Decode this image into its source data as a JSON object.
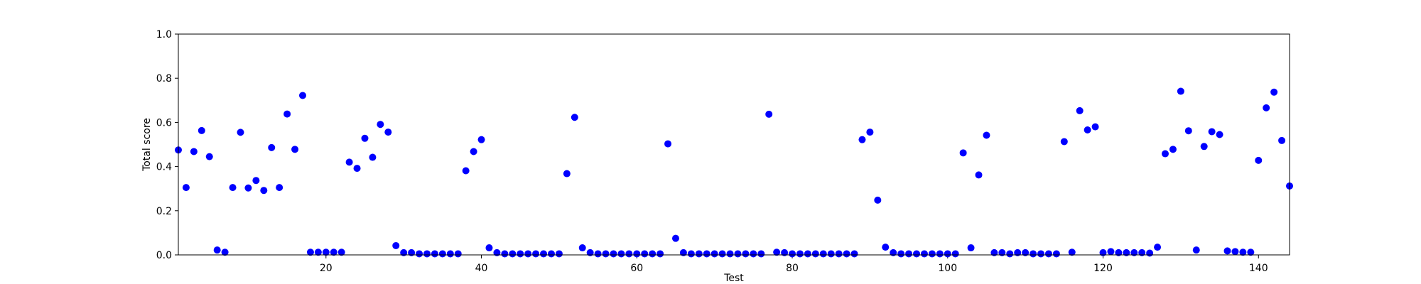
{
  "chart_data": {
    "type": "scatter",
    "xlabel": "Test",
    "ylabel": "Total score",
    "xlim": [
      1,
      144
    ],
    "ylim": [
      0,
      1.0
    ],
    "x_ticks": [
      20,
      40,
      60,
      80,
      100,
      120,
      140
    ],
    "x_tick_labels": [
      "20",
      "40",
      "60",
      "80",
      "100",
      "120",
      "140"
    ],
    "y_ticks": [
      0.0,
      0.2,
      0.4,
      0.6,
      0.8,
      1.0
    ],
    "y_tick_labels": [
      "0.0",
      "0.2",
      "0.4",
      "0.6",
      "0.8",
      "1.0"
    ],
    "grid": false,
    "marker_color": "#0000ff",
    "series": [
      {
        "x": [
          1,
          2,
          3,
          4,
          5,
          6,
          7,
          8,
          9,
          10,
          11,
          12,
          13,
          14,
          15,
          16,
          17,
          18,
          19,
          20,
          21,
          22,
          23,
          24,
          25,
          26,
          27,
          28,
          29,
          30,
          31,
          32,
          33,
          34,
          35,
          36,
          37,
          38,
          39,
          40,
          41,
          42,
          43,
          44,
          45,
          46,
          47,
          48,
          49,
          50,
          51,
          52,
          53,
          54,
          55,
          56,
          57,
          58,
          59,
          60,
          61,
          62,
          63,
          64,
          65,
          66,
          67,
          68,
          69,
          70,
          71,
          72,
          73,
          74,
          75,
          76,
          77,
          78,
          79,
          80,
          81,
          82,
          83,
          84,
          85,
          86,
          87,
          88,
          89,
          90,
          91,
          92,
          93,
          94,
          95,
          96,
          97,
          98,
          99,
          100,
          101,
          102,
          103,
          104,
          105,
          106,
          107,
          108,
          109,
          110,
          111,
          112,
          113,
          114,
          115,
          116,
          117,
          118,
          119,
          120,
          121,
          122,
          123,
          124,
          125,
          126,
          127,
          128,
          129,
          130,
          131,
          132,
          133,
          134,
          135,
          136,
          137,
          138,
          139,
          140,
          141,
          142,
          143,
          144
        ],
        "y": [
          0.475,
          0.305,
          0.468,
          0.563,
          0.445,
          0.022,
          0.012,
          0.305,
          0.555,
          0.303,
          0.337,
          0.292,
          0.486,
          0.305,
          0.638,
          0.478,
          0.722,
          0.012,
          0.012,
          0.012,
          0.012,
          0.012,
          0.42,
          0.392,
          0.528,
          0.442,
          0.591,
          0.556,
          0.042,
          0.01,
          0.01,
          0.005,
          0.005,
          0.005,
          0.005,
          0.005,
          0.005,
          0.381,
          0.468,
          0.522,
          0.032,
          0.01,
          0.005,
          0.005,
          0.005,
          0.005,
          0.005,
          0.005,
          0.005,
          0.005,
          0.368,
          0.623,
          0.032,
          0.01,
          0.005,
          0.005,
          0.005,
          0.005,
          0.005,
          0.005,
          0.005,
          0.005,
          0.005,
          0.503,
          0.075,
          0.01,
          0.005,
          0.005,
          0.005,
          0.005,
          0.005,
          0.005,
          0.005,
          0.005,
          0.005,
          0.005,
          0.637,
          0.012,
          0.01,
          0.005,
          0.005,
          0.005,
          0.005,
          0.005,
          0.005,
          0.005,
          0.005,
          0.005,
          0.522,
          0.556,
          0.248,
          0.035,
          0.01,
          0.005,
          0.005,
          0.005,
          0.005,
          0.005,
          0.005,
          0.005,
          0.005,
          0.462,
          0.032,
          0.362,
          0.542,
          0.01,
          0.01,
          0.005,
          0.01,
          0.01,
          0.005,
          0.005,
          0.005,
          0.005,
          0.513,
          0.012,
          0.653,
          0.566,
          0.58,
          0.01,
          0.015,
          0.01,
          0.01,
          0.01,
          0.01,
          0.008,
          0.035,
          0.458,
          0.478,
          0.741,
          0.562,
          0.022,
          0.491,
          0.558,
          0.545,
          0.018,
          0.015,
          0.012,
          0.012,
          0.428,
          0.666,
          0.737,
          0.518,
          0.312
        ]
      }
    ]
  }
}
